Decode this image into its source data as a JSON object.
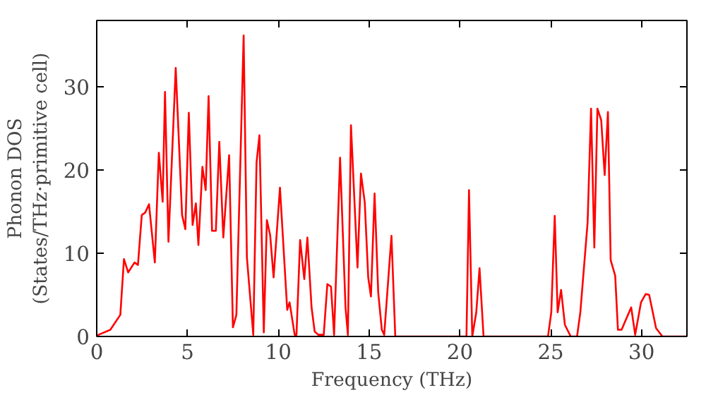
{
  "chart_data": {
    "type": "line",
    "xlabel": "Frequency (THz)",
    "ylabel": "Phonon DOS\n(States/THz·primitive cell)",
    "x": [
      0,
      0.1,
      0.75,
      1.3,
      1.5,
      1.73,
      2.08,
      2.27,
      2.48,
      2.67,
      2.88,
      3.2,
      3.42,
      3.63,
      3.76,
      3.95,
      4.35,
      4.7,
      4.88,
      5.07,
      5.28,
      5.46,
      5.6,
      5.82,
      6.0,
      6.16,
      6.35,
      6.56,
      6.75,
      6.97,
      7.29,
      7.5,
      7.69,
      8.09,
      8.27,
      8.62,
      8.8,
      8.96,
      9.2,
      9.37,
      9.55,
      9.74,
      10.09,
      10.49,
      10.62,
      10.9,
      11.0,
      11.2,
      11.43,
      11.6,
      11.83,
      12.0,
      12.2,
      12.5,
      12.7,
      12.9,
      13.07,
      13.4,
      13.7,
      13.83,
      14.0,
      14.36,
      14.55,
      14.76,
      14.95,
      15.1,
      15.3,
      15.5,
      15.7,
      15.83,
      16.23,
      16.44,
      20.36,
      20.5,
      20.68,
      20.9,
      21.08,
      21.3,
      24.85,
      25.03,
      25.22,
      25.38,
      25.57,
      25.78,
      26.1,
      26.45,
      26.63,
      27.03,
      27.22,
      27.4,
      27.57,
      27.78,
      27.97,
      28.15,
      28.3,
      28.55,
      28.7,
      28.9,
      29.43,
      29.65,
      29.97,
      30.23,
      30.42,
      30.8,
      31.15,
      32.5
    ],
    "series": [
      {
        "color": "#ff0000",
        "values": [
          0,
          0.2,
          0.8,
          2.6,
          9.3,
          7.7,
          8.9,
          8.6,
          14.6,
          14.9,
          15.9,
          8.9,
          22.1,
          16.2,
          29.4,
          11.4,
          32.3,
          14.6,
          12.9,
          26.9,
          13.4,
          16.0,
          11.0,
          20.4,
          17.6,
          28.9,
          12.7,
          12.7,
          23.4,
          11.9,
          21.8,
          1.1,
          2.6,
          36.2,
          9.5,
          0.2,
          20.9,
          24.2,
          0.5,
          14.0,
          12.2,
          7.1,
          17.9,
          3.2,
          4.1,
          0.2,
          0.2,
          11.6,
          6.9,
          11.9,
          3.5,
          0.6,
          0.2,
          0.2,
          6.3,
          6.0,
          0.2,
          21.5,
          3.5,
          0.2,
          25.4,
          8.3,
          19.6,
          16.1,
          7.1,
          4.8,
          17.2,
          5.3,
          0.8,
          0.2,
          12.1,
          0,
          0,
          17.6,
          0,
          2.9,
          8.2,
          0,
          0,
          2.9,
          14.5,
          2.9,
          5.6,
          1.4,
          0,
          0,
          2.9,
          13.7,
          27.4,
          10.7,
          27.4,
          26.0,
          19.4,
          27.0,
          9.2,
          7.3,
          0.8,
          0.8,
          3.5,
          0.2,
          4.1,
          5.1,
          5.0,
          1.0,
          0,
          0
        ]
      }
    ],
    "xlim": [
      0,
      32.5
    ],
    "ylim": [
      0,
      38
    ],
    "xticks": [
      0,
      5,
      10,
      15,
      20,
      25,
      30
    ],
    "yticks": [
      0,
      10,
      20,
      30
    ],
    "grid": false
  }
}
